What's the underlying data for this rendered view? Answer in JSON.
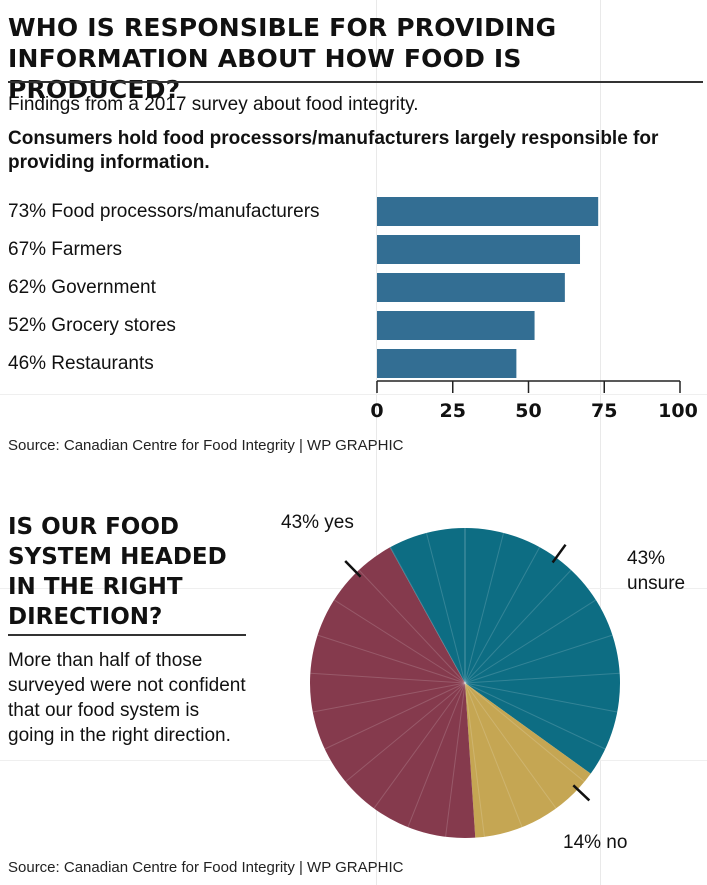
{
  "title": "WHO IS RESPONSIBLE FOR PROVIDING INFORMATION ABOUT HOW FOOD IS PRODUCED?",
  "subtitle": "Findings from a 2017 survey about food integrity.",
  "bar_headline": "Consumers hold food processors/manufacturers largely responsible for providing information.",
  "source_1": "Source: Canadian Centre for Food Integrity  |  WP GRAPHIC",
  "pie_title": "IS OUR FOOD SYSTEM HEADED IN THE RIGHT DIRECTION?",
  "pie_description": "More than half of those surveyed were not confident that our food system is going in the right direction.",
  "source_2": "Source: Canadian Centre for Food Integrity  |  WP GRAPHIC",
  "colors": {
    "bar": "#336e93",
    "unsure": "#0d6d83",
    "no": "#c5a653",
    "yes": "#853a4d"
  },
  "chart_data": [
    {
      "type": "bar",
      "orientation": "horizontal",
      "categories": [
        "73% Food processors/manufacturers",
        "67% Farmers",
        "62% Government",
        "52% Grocery stores",
        "46% Restaurants"
      ],
      "values": [
        73,
        67,
        62,
        52,
        46
      ],
      "xlim": [
        0,
        100
      ],
      "xticks": [
        0,
        25,
        50,
        75,
        100
      ]
    },
    {
      "type": "pie",
      "slices": [
        {
          "name": "unsure",
          "value": 43,
          "label_top": "43%",
          "label_bottom": "unsure"
        },
        {
          "name": "no",
          "value": 14,
          "label": "14% no"
        },
        {
          "name": "yes",
          "value": 43,
          "label": "43% yes"
        }
      ]
    }
  ]
}
